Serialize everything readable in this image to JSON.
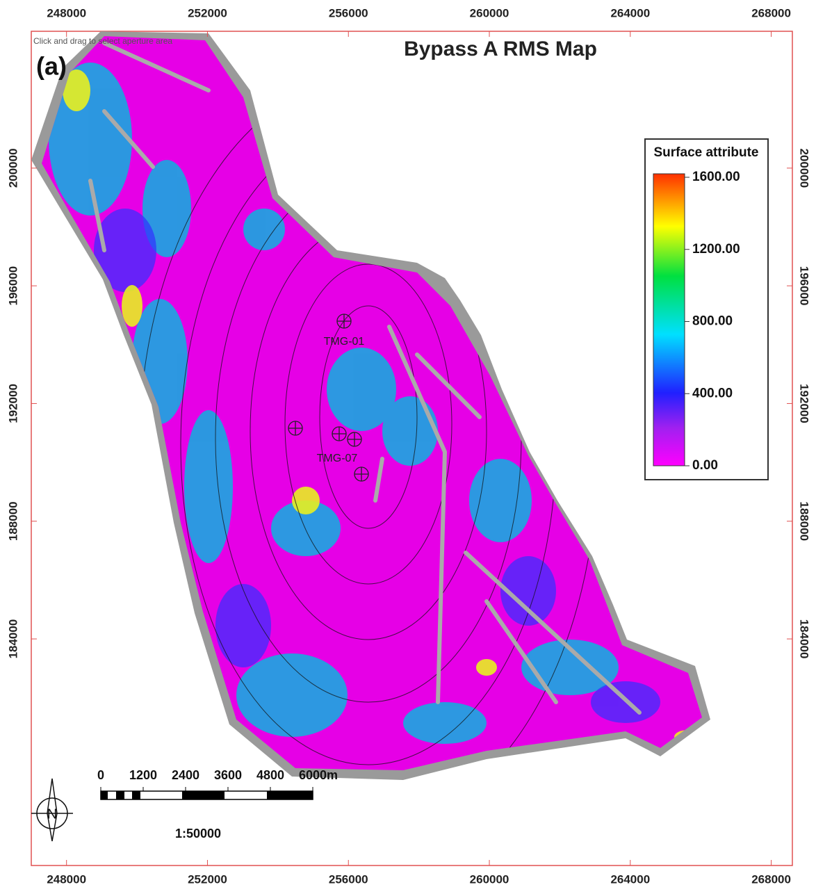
{
  "map": {
    "title": "Bypass A RMS Map",
    "panel_label": "(a)",
    "hint": "Click and drag to select aperture area",
    "xlim": [
      247000,
      268600
    ],
    "ylim": [
      176300,
      204650
    ],
    "xticks": [
      248000,
      252000,
      256000,
      260000,
      264000,
      268000
    ],
    "yticks": [
      184000,
      188000,
      192000,
      196000,
      200000
    ],
    "colorbar": {
      "title": "Surface attribute",
      "lim": [
        0,
        1600
      ],
      "ticks": [
        {
          "value": 0,
          "label": "0.00"
        },
        {
          "value": 400,
          "label": "400.00"
        },
        {
          "value": 800,
          "label": "800.00"
        },
        {
          "value": 1200,
          "label": "1200.00"
        },
        {
          "value": 1600,
          "label": "1600.00"
        }
      ]
    },
    "scale_bar": {
      "ticks": [
        0,
        1200,
        2400,
        3600,
        4800,
        {
          "value": 6000,
          "label": "6000m"
        }
      ],
      "ratio": "1:50000"
    },
    "wells": [
      "TMG-01",
      "TMG-07"
    ]
  }
}
